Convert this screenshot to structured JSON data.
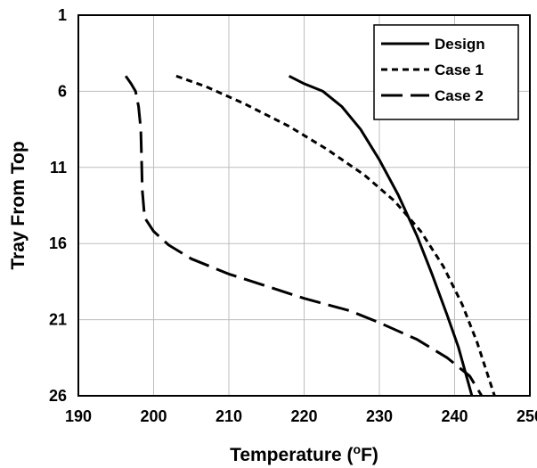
{
  "chart_data": {
    "type": "line",
    "xlabel": "Temperature (",
    "xlabel_sup": "o",
    "xlabel_suffix": "F)",
    "ylabel": "Tray From Top",
    "xlim": [
      190,
      250
    ],
    "ylim": [
      1,
      26
    ],
    "y_inverted": true,
    "xticks": [
      "190",
      "200",
      "210",
      "220",
      "230",
      "240",
      "250"
    ],
    "yticks": [
      "1",
      "6",
      "11",
      "16",
      "21",
      "26"
    ],
    "grid": true,
    "legend_position": "top-right",
    "series": [
      {
        "name": "Design",
        "dash": "solid",
        "points": [
          [
            218.0,
            5.0
          ],
          [
            220.0,
            5.5
          ],
          [
            222.5,
            6.0
          ],
          [
            225.0,
            7.0
          ],
          [
            227.5,
            8.5
          ],
          [
            230.0,
            10.5
          ],
          [
            232.5,
            12.8
          ],
          [
            235.0,
            15.5
          ],
          [
            237.0,
            18.0
          ],
          [
            239.0,
            20.7
          ],
          [
            240.5,
            22.8
          ],
          [
            242.3,
            26.0
          ]
        ]
      },
      {
        "name": "Case 1",
        "dash": "short",
        "points": [
          [
            203.0,
            5.0
          ],
          [
            207.0,
            5.7
          ],
          [
            212.0,
            6.8
          ],
          [
            218.0,
            8.3
          ],
          [
            223.0,
            9.8
          ],
          [
            228.0,
            11.5
          ],
          [
            232.0,
            13.2
          ],
          [
            235.5,
            15.2
          ],
          [
            238.5,
            17.5
          ],
          [
            241.0,
            20.0
          ],
          [
            243.0,
            22.5
          ],
          [
            245.3,
            26.0
          ]
        ]
      },
      {
        "name": "Case 2",
        "dash": "long",
        "points": [
          [
            196.3,
            5.0
          ],
          [
            197.0,
            5.5
          ],
          [
            197.6,
            6.0
          ],
          [
            198.0,
            7.0
          ],
          [
            198.3,
            8.5
          ],
          [
            198.4,
            10.5
          ],
          [
            198.5,
            12.5
          ],
          [
            198.8,
            14.3
          ],
          [
            200.0,
            15.2
          ],
          [
            202.0,
            16.1
          ],
          [
            205.0,
            17.0
          ],
          [
            210.0,
            18.0
          ],
          [
            215.0,
            18.8
          ],
          [
            220.0,
            19.6
          ],
          [
            226.0,
            20.4
          ],
          [
            230.0,
            21.2
          ],
          [
            235.0,
            22.3
          ],
          [
            239.0,
            23.5
          ],
          [
            242.0,
            24.7
          ],
          [
            243.6,
            26.0
          ]
        ]
      }
    ]
  }
}
